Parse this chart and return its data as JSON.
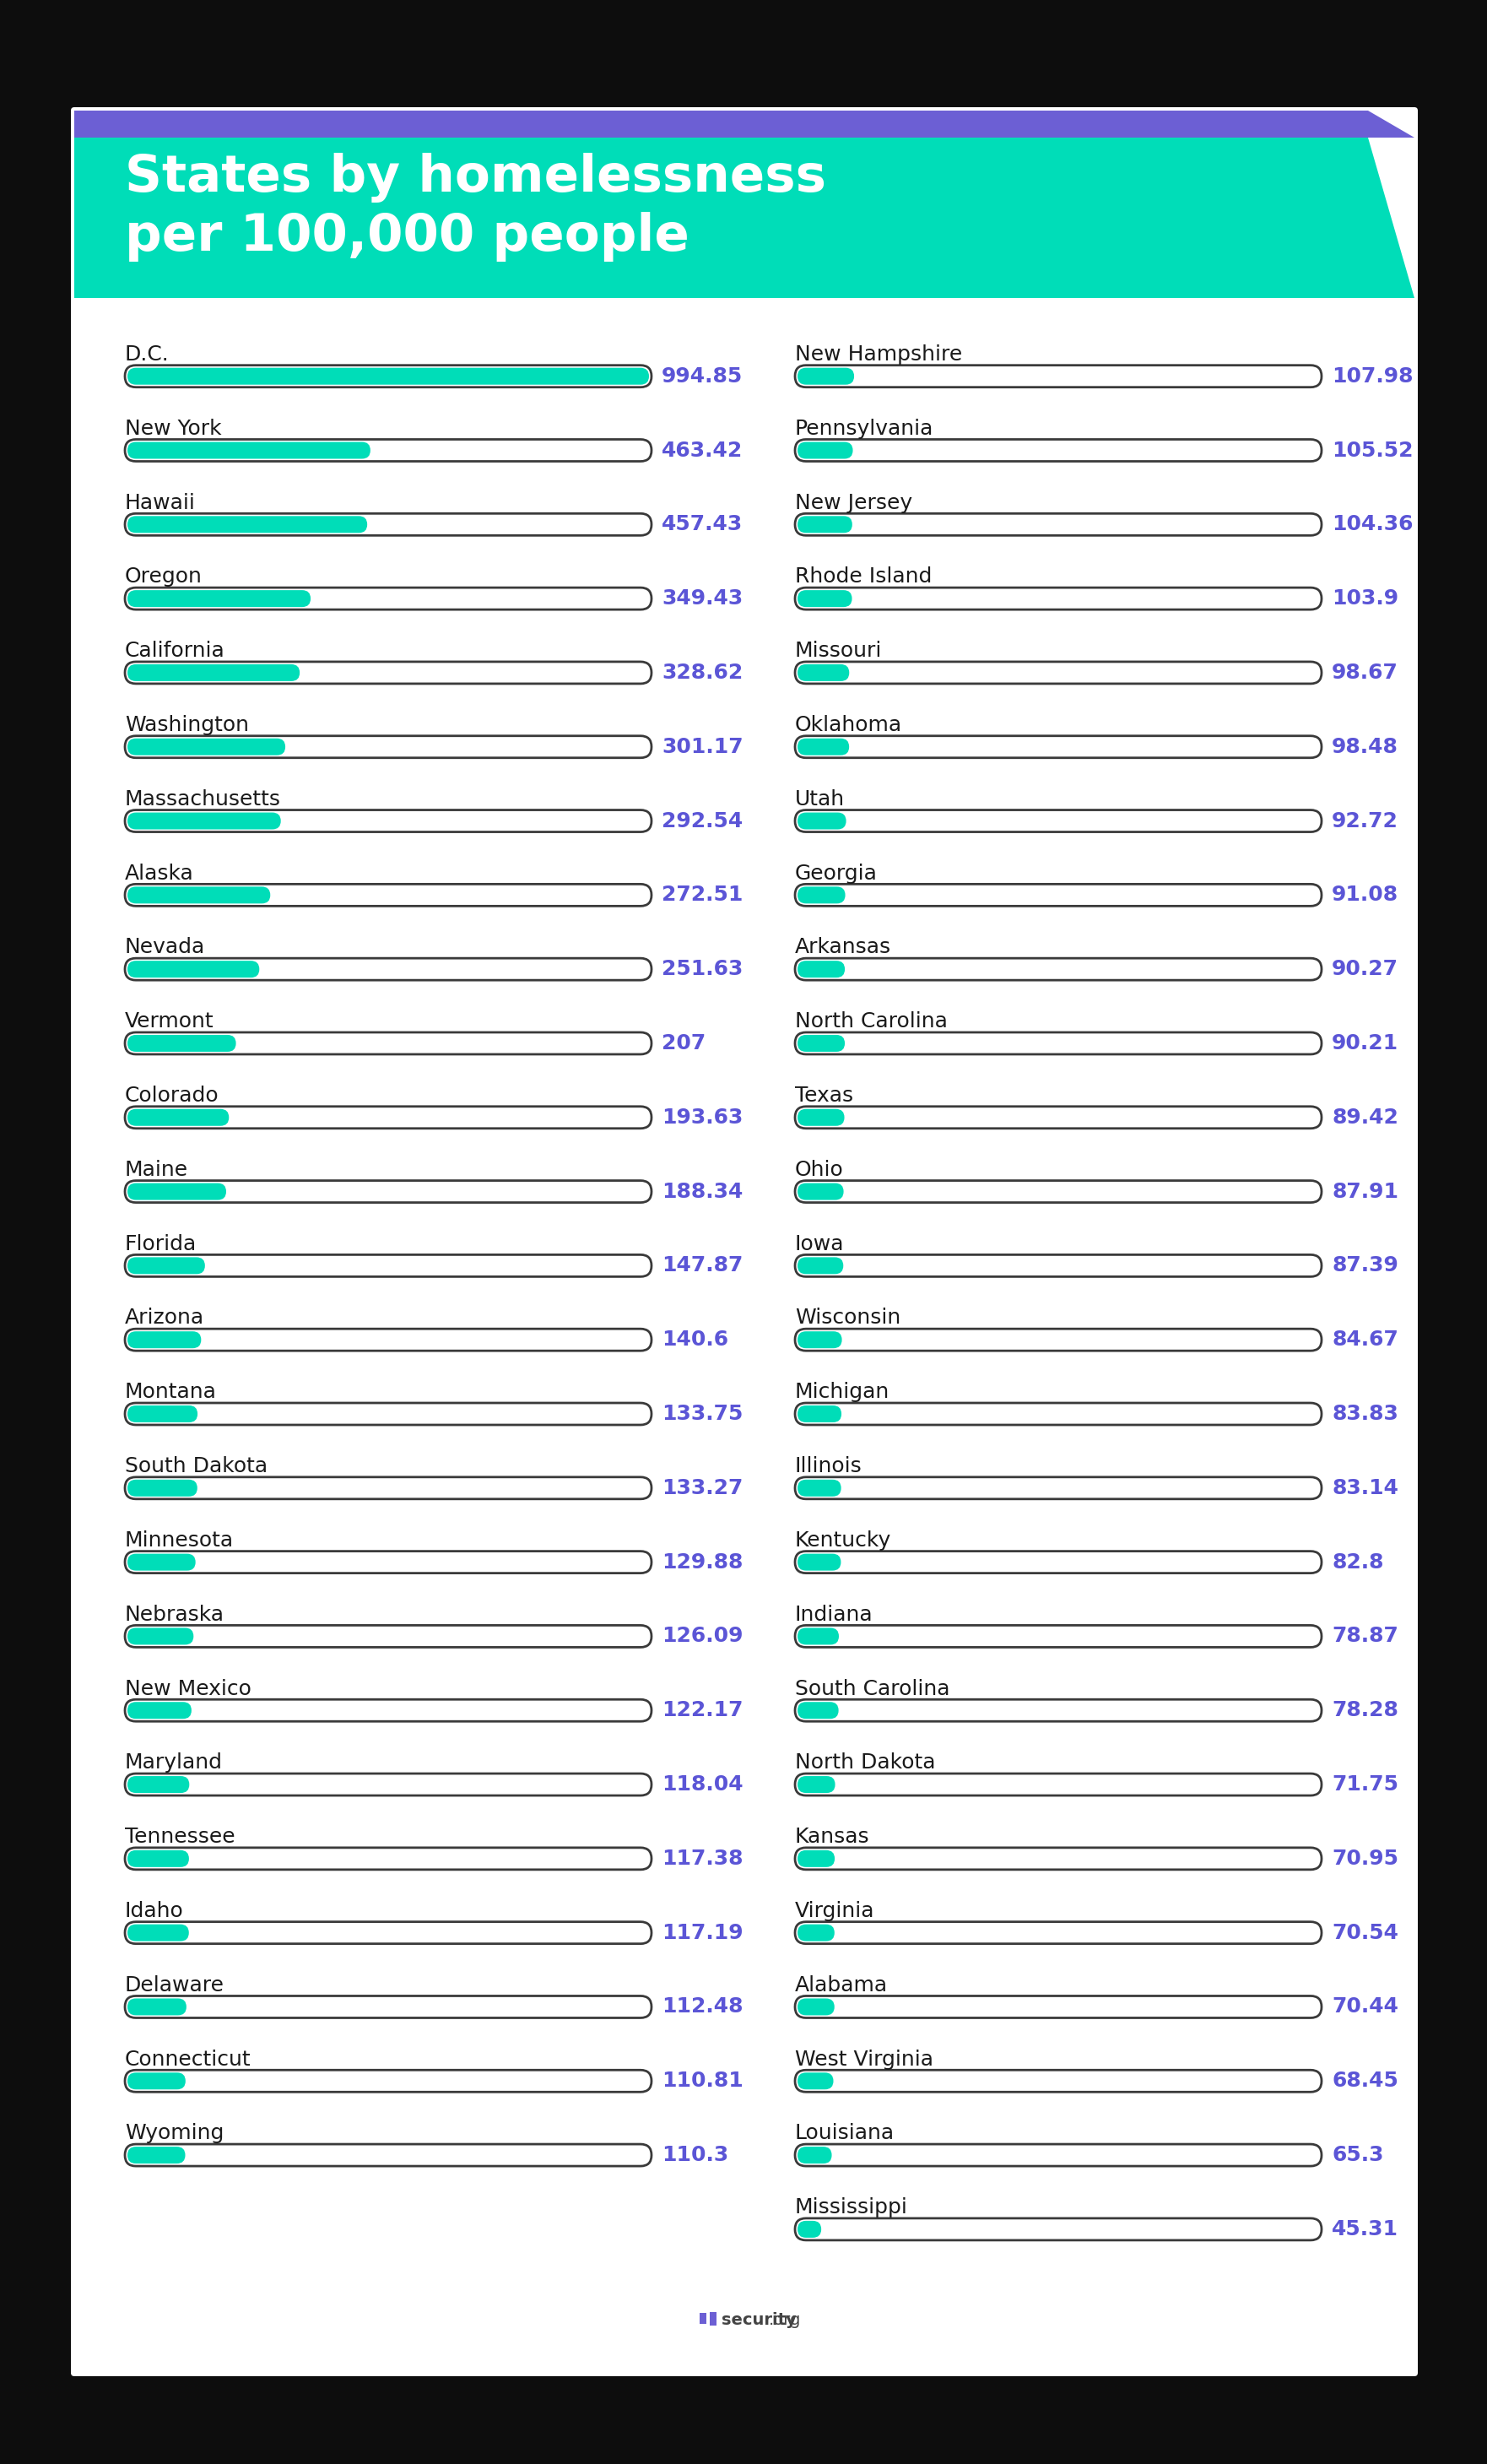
{
  "title_line1": "States by homelessness",
  "title_line2": "per 100,000 people",
  "title_bg_color": "#00DDB8",
  "title_stripe_color": "#6C5FD4",
  "title_text_color": "#ffffff",
  "bar_color": "#00DDB8",
  "bar_border_color": "#3a3a3a",
  "value_color": "#5B55D6",
  "label_color": "#1a1a1a",
  "card_bg": "#ffffff",
  "outer_bg": "#0d0d0d",
  "max_value": 994.85,
  "left_data": [
    {
      "state": "D.C.",
      "value": 994.85
    },
    {
      "state": "New York",
      "value": 463.42
    },
    {
      "state": "Hawaii",
      "value": 457.43
    },
    {
      "state": "Oregon",
      "value": 349.43
    },
    {
      "state": "California",
      "value": 328.62
    },
    {
      "state": "Washington",
      "value": 301.17
    },
    {
      "state": "Massachusetts",
      "value": 292.54
    },
    {
      "state": "Alaska",
      "value": 272.51
    },
    {
      "state": "Nevada",
      "value": 251.63
    },
    {
      "state": "Vermont",
      "value": 207
    },
    {
      "state": "Colorado",
      "value": 193.63
    },
    {
      "state": "Maine",
      "value": 188.34
    },
    {
      "state": "Florida",
      "value": 147.87
    },
    {
      "state": "Arizona",
      "value": 140.6
    },
    {
      "state": "Montana",
      "value": 133.75
    },
    {
      "state": "South Dakota",
      "value": 133.27
    },
    {
      "state": "Minnesota",
      "value": 129.88
    },
    {
      "state": "Nebraska",
      "value": 126.09
    },
    {
      "state": "New Mexico",
      "value": 122.17
    },
    {
      "state": "Maryland",
      "value": 118.04
    },
    {
      "state": "Tennessee",
      "value": 117.38
    },
    {
      "state": "Idaho",
      "value": 117.19
    },
    {
      "state": "Delaware",
      "value": 112.48
    },
    {
      "state": "Connecticut",
      "value": 110.81
    },
    {
      "state": "Wyoming",
      "value": 110.3
    }
  ],
  "right_data": [
    {
      "state": "New Hampshire",
      "value": 107.98
    },
    {
      "state": "Pennsylvania",
      "value": 105.52
    },
    {
      "state": "New Jersey",
      "value": 104.36
    },
    {
      "state": "Rhode Island",
      "value": 103.9
    },
    {
      "state": "Missouri",
      "value": 98.67
    },
    {
      "state": "Oklahoma",
      "value": 98.48
    },
    {
      "state": "Utah",
      "value": 92.72
    },
    {
      "state": "Georgia",
      "value": 91.08
    },
    {
      "state": "Arkansas",
      "value": 90.27
    },
    {
      "state": "North Carolina",
      "value": 90.21
    },
    {
      "state": "Texas",
      "value": 89.42
    },
    {
      "state": "Ohio",
      "value": 87.91
    },
    {
      "state": "Iowa",
      "value": 87.39
    },
    {
      "state": "Wisconsin",
      "value": 84.67
    },
    {
      "state": "Michigan",
      "value": 83.83
    },
    {
      "state": "Illinois",
      "value": 83.14
    },
    {
      "state": "Kentucky",
      "value": 82.8
    },
    {
      "state": "Indiana",
      "value": 78.87
    },
    {
      "state": "South Carolina",
      "value": 78.28
    },
    {
      "state": "North Dakota",
      "value": 71.75
    },
    {
      "state": "Kansas",
      "value": 70.95
    },
    {
      "state": "Virginia",
      "value": 70.54
    },
    {
      "state": "Alabama",
      "value": 70.44
    },
    {
      "state": "West Virginia",
      "value": 68.45
    },
    {
      "state": "Louisiana",
      "value": 65.3
    },
    {
      "state": "Mississippi",
      "value": 45.31
    }
  ]
}
